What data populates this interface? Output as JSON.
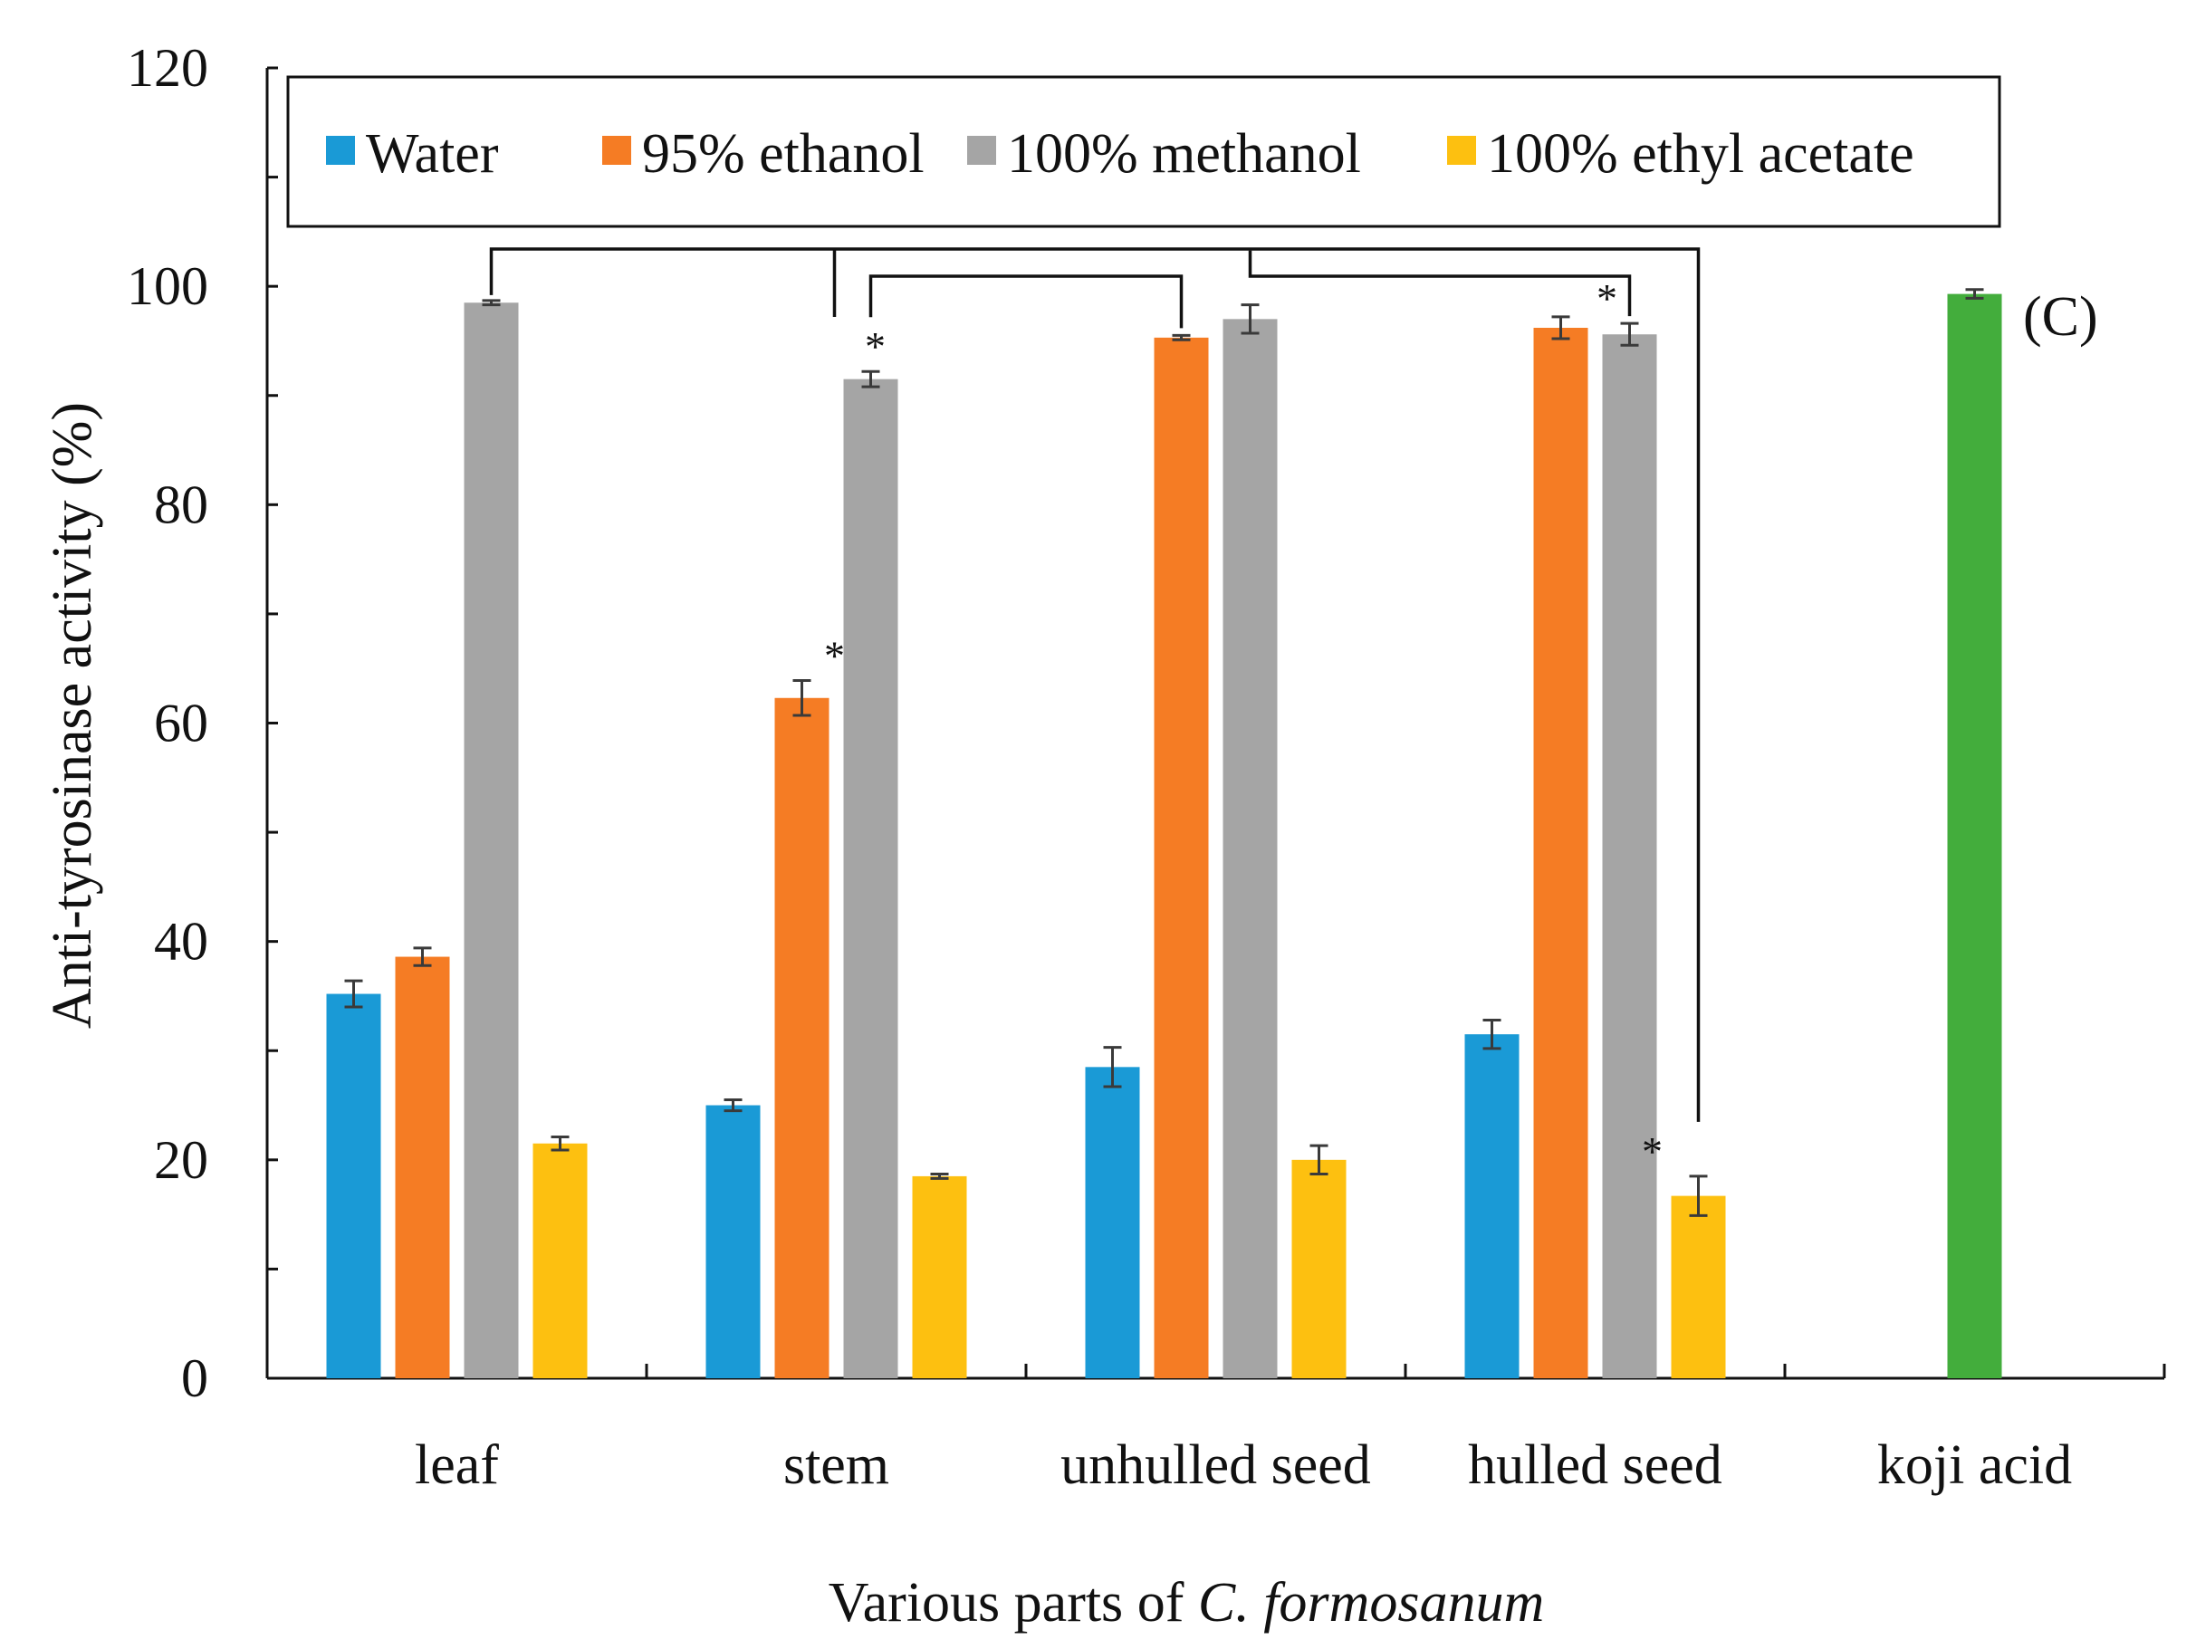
{
  "chart_data": {
    "type": "bar",
    "panel_label": "(C)",
    "ylabel": "Anti-tyrosinase activity (%)",
    "xlabel_prefix": "Various parts of ",
    "xlabel_italic": "C. formosanum",
    "ylim": [
      0,
      120
    ],
    "yticks": [
      "0",
      "20",
      "40",
      "60",
      "80",
      "100",
      "120"
    ],
    "categories": [
      "leaf",
      "stem",
      "unhulled seed",
      "hulled seed",
      "koji acid"
    ],
    "legend_position": "top",
    "series": [
      {
        "name": "Water",
        "color": "#1a9ad6",
        "values": [
          35.2,
          25.0,
          28.5,
          31.5,
          null
        ],
        "errors": [
          1.2,
          0.5,
          1.8,
          1.3,
          null
        ]
      },
      {
        "name": "95% ethanol",
        "color": "#f57c24",
        "values": [
          38.6,
          62.3,
          95.3,
          96.2,
          null
        ],
        "errors": [
          0.8,
          1.6,
          0.2,
          1.0,
          null
        ]
      },
      {
        "name": "100% methanol",
        "color": "#a5a5a5",
        "values": [
          98.5,
          91.5,
          97.0,
          95.6,
          null
        ],
        "errors": [
          0.2,
          0.7,
          1.3,
          1.0,
          null
        ]
      },
      {
        "name": "100% ethyl acetate",
        "color": "#fdc010",
        "values": [
          21.5,
          18.5,
          20.0,
          16.7,
          null
        ],
        "errors": [
          0.6,
          0.2,
          1.3,
          1.8,
          null
        ]
      }
    ],
    "control": {
      "name": "koji acid",
      "category_index": 4,
      "value": 99.3,
      "error": 0.4,
      "color": "#43ad3c"
    },
    "significance": [
      {
        "from": {
          "cat": 0,
          "series": 2
        },
        "to": {
          "cat": 3,
          "series": 3
        },
        "level": 3,
        "drop_cat": 1,
        "drop_series": 1
      },
      {
        "from": {
          "cat": 1,
          "series": 2
        },
        "to": {
          "cat": 2,
          "series": 1
        },
        "level": 2
      },
      {
        "from": {
          "cat": 2,
          "series": 2
        },
        "to": {
          "cat": 3,
          "series": 2
        },
        "level": 2
      }
    ],
    "asterisks": [
      {
        "cat": 1,
        "series": 1,
        "text": "*"
      },
      {
        "cat": 1,
        "series": 2,
        "text": "*"
      },
      {
        "cat": 3,
        "series": 2,
        "text": "*"
      },
      {
        "cat": 3,
        "series": 3,
        "text": "*"
      }
    ]
  }
}
